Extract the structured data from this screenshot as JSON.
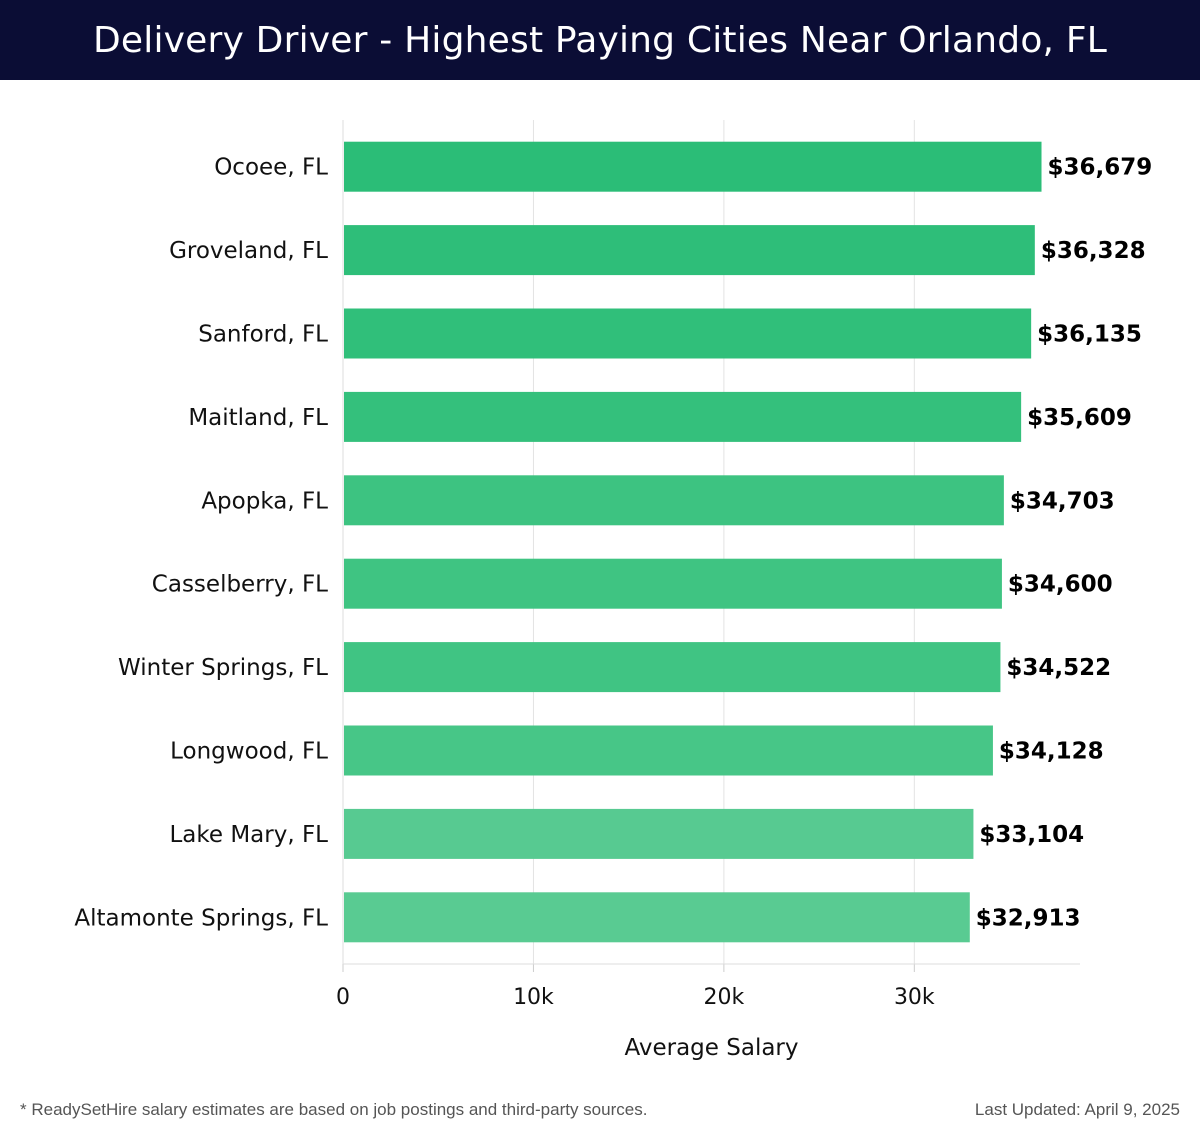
{
  "header": {
    "title": "Delivery Driver - Highest Paying Cities Near Orlando, FL"
  },
  "chart_data": {
    "type": "bar",
    "orientation": "horizontal",
    "title": "Delivery Driver - Highest Paying Cities Near Orlando, FL",
    "xlabel": "Average Salary",
    "ylabel": "",
    "xlim": [
      0,
      38700
    ],
    "xticks": [
      0,
      10000,
      20000,
      30000
    ],
    "xtick_labels": [
      "0",
      "10k",
      "20k",
      "30k"
    ],
    "grid": true,
    "categories": [
      "Ocoee, FL",
      "Groveland, FL",
      "Sanford, FL",
      "Maitland, FL",
      "Apopka, FL",
      "Casselberry, FL",
      "Winter Springs, FL",
      "Longwood, FL",
      "Lake Mary, FL",
      "Altamonte Springs, FL"
    ],
    "values": [
      36679,
      36328,
      36135,
      35609,
      34703,
      34600,
      34522,
      34128,
      33104,
      32913
    ],
    "value_labels": [
      "$36,679",
      "$36,328",
      "$36,135",
      "$35,609",
      "$34,703",
      "$34,600",
      "$34,522",
      "$34,128",
      "$33,104",
      "$32,913"
    ],
    "bar_colors": [
      "#2bbd77",
      "#2ebe79",
      "#30bf7a",
      "#34c07c",
      "#3dc381",
      "#3fc482",
      "#40c483",
      "#47c687",
      "#57ca91",
      "#59cb92"
    ]
  },
  "footer": {
    "note": "* ReadySetHire salary estimates are based on job postings and third-party sources.",
    "updated": "Last Updated: April 9, 2025"
  }
}
